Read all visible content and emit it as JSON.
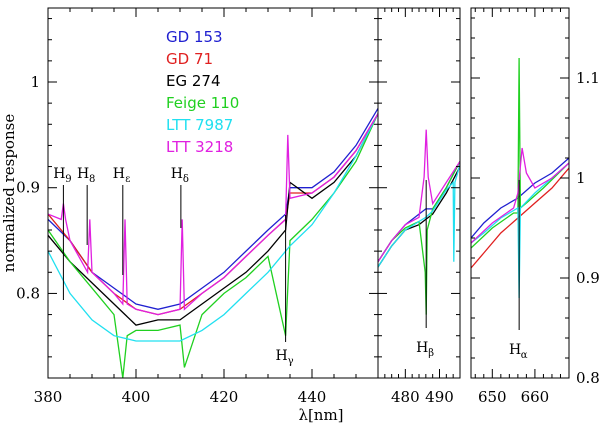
{
  "chart_data": {
    "type": "line",
    "ylabel": "normalized response",
    "xlabel": "λ[nm]",
    "left_axis": {
      "ylim": [
        0.72,
        1.07
      ],
      "ticks": [
        0.8,
        0.9,
        1
      ],
      "tick_labels": [
        "0.8",
        "0.9",
        "1"
      ]
    },
    "right_axis": {
      "ylim": [
        0.8,
        1.17
      ],
      "ticks": [
        0.8,
        0.9,
        1,
        1.1
      ],
      "tick_labels": [
        "0.8",
        "0.9",
        "1",
        "1.1"
      ]
    },
    "panels": [
      {
        "name": "blue",
        "xlim": [
          380,
          455
        ],
        "ticks": [
          380,
          400,
          420,
          440
        ],
        "tick_labels": [
          "380",
          "400",
          "420",
          "440"
        ],
        "axis": "left"
      },
      {
        "name": "hbeta",
        "xlim": [
          472,
          496
        ],
        "ticks": [
          480,
          490
        ],
        "tick_labels": [
          "480",
          "490"
        ],
        "axis": "left"
      },
      {
        "name": "halpha",
        "xlim": [
          645,
          668
        ],
        "ticks": [
          650,
          660
        ],
        "tick_labels": [
          "650",
          "660"
        ],
        "axis": "right"
      }
    ],
    "legend": [
      {
        "name": "GD 153",
        "color": "#2020d0"
      },
      {
        "name": "GD 71",
        "color": "#e02020"
      },
      {
        "name": "EG 274",
        "color": "#000000"
      },
      {
        "name": "Feige 110",
        "color": "#20d020"
      },
      {
        "name": "LTT 7987",
        "color": "#20e0f0"
      },
      {
        "name": "LTT 3218",
        "color": "#e020e0"
      }
    ],
    "annotations": [
      {
        "label": "H",
        "sub": "9",
        "panel": 0,
        "x": 383.5
      },
      {
        "label": "H",
        "sub": "8",
        "panel": 0,
        "x": 388.9
      },
      {
        "label": "H",
        "sub": "ε",
        "panel": 0,
        "x": 397.0
      },
      {
        "label": "H",
        "sub": "δ",
        "panel": 0,
        "x": 410.2
      },
      {
        "label": "H",
        "sub": "γ",
        "panel": 0,
        "x": 434.0
      },
      {
        "label": "H",
        "sub": "β",
        "panel": 1,
        "x": 486.1
      },
      {
        "label": "H",
        "sub": "α",
        "panel": 2,
        "x": 656.3
      }
    ],
    "series": [
      {
        "name": "GD 153",
        "color": "#2020d0",
        "panel": 0,
        "x": [
          380,
          385,
          390,
          395,
          400,
          405,
          410,
          415,
          420,
          425,
          430,
          434,
          435,
          440,
          445,
          450,
          455
        ],
        "y": [
          0.87,
          0.85,
          0.82,
          0.805,
          0.79,
          0.785,
          0.79,
          0.805,
          0.82,
          0.84,
          0.86,
          0.875,
          0.9,
          0.9,
          0.915,
          0.94,
          0.975
        ]
      },
      {
        "name": "GD 71",
        "color": "#e02020",
        "panel": 0,
        "x": [
          380,
          385,
          390,
          395,
          400,
          405,
          410,
          415,
          420,
          425,
          430,
          434,
          435,
          440,
          445,
          450,
          455
        ],
        "y": [
          0.875,
          0.85,
          0.82,
          0.8,
          0.785,
          0.78,
          0.785,
          0.8,
          0.815,
          0.835,
          0.855,
          0.87,
          0.895,
          0.895,
          0.91,
          0.935,
          0.97
        ]
      },
      {
        "name": "EG 274",
        "color": "#000000",
        "panel": 0,
        "x": [
          380,
          385,
          390,
          395,
          400,
          405,
          410,
          415,
          420,
          425,
          430,
          434,
          435,
          440,
          445,
          450,
          455
        ],
        "y": [
          0.855,
          0.83,
          0.81,
          0.79,
          0.77,
          0.775,
          0.775,
          0.79,
          0.805,
          0.82,
          0.84,
          0.86,
          0.905,
          0.89,
          0.905,
          0.93,
          0.97
        ]
      },
      {
        "name": "Feige 110",
        "color": "#20d020",
        "panel": 0,
        "x": [
          380,
          385,
          390,
          395,
          397,
          398,
          400,
          405,
          410,
          411,
          415,
          420,
          425,
          430,
          434,
          435,
          440,
          445,
          450,
          455
        ],
        "y": [
          0.86,
          0.83,
          0.805,
          0.78,
          0.72,
          0.76,
          0.765,
          0.765,
          0.77,
          0.73,
          0.78,
          0.8,
          0.815,
          0.835,
          0.76,
          0.85,
          0.87,
          0.895,
          0.925,
          0.97
        ]
      },
      {
        "name": "LTT 7987",
        "color": "#20e0f0",
        "panel": 0,
        "x": [
          380,
          385,
          390,
          395,
          400,
          405,
          410,
          415,
          420,
          425,
          430,
          435,
          440,
          445,
          450,
          455
        ],
        "y": [
          0.84,
          0.8,
          0.775,
          0.76,
          0.755,
          0.755,
          0.755,
          0.765,
          0.78,
          0.8,
          0.82,
          0.845,
          0.865,
          0.895,
          0.93,
          0.97
        ]
      },
      {
        "name": "LTT 3218",
        "color": "#e020e0",
        "panel": 0,
        "x": [
          380,
          383,
          383.5,
          384,
          385,
          389,
          389.5,
          390,
          395,
          397,
          397.5,
          398,
          400,
          405,
          410,
          410.5,
          411,
          415,
          420,
          425,
          430,
          434,
          434.5,
          435,
          440,
          445,
          450,
          455
        ],
        "y": [
          0.875,
          0.87,
          0.885,
          0.87,
          0.85,
          0.82,
          0.87,
          0.82,
          0.8,
          0.79,
          0.87,
          0.79,
          0.785,
          0.78,
          0.785,
          0.87,
          0.785,
          0.8,
          0.815,
          0.835,
          0.855,
          0.87,
          0.95,
          0.89,
          0.895,
          0.91,
          0.935,
          0.97
        ]
      },
      {
        "name": "GD 153",
        "color": "#2020d0",
        "panel": 1,
        "x": [
          472,
          476,
          480,
          484,
          486,
          488,
          492,
          496
        ],
        "y": [
          0.83,
          0.85,
          0.865,
          0.875,
          0.88,
          0.88,
          0.9,
          0.925
        ]
      },
      {
        "name": "EG 274",
        "color": "#000000",
        "panel": 1,
        "x": [
          472,
          476,
          480,
          484,
          486,
          488,
          492,
          496
        ],
        "y": [
          0.825,
          0.845,
          0.86,
          0.865,
          0.87,
          0.875,
          0.895,
          0.92
        ]
      },
      {
        "name": "Feige 110",
        "color": "#20d020",
        "panel": 1,
        "x": [
          472,
          476,
          480,
          484,
          485.8,
          486.1,
          486.4,
          488,
          492,
          496
        ],
        "y": [
          0.83,
          0.85,
          0.862,
          0.868,
          0.82,
          0.78,
          0.86,
          0.88,
          0.9,
          0.925
        ]
      },
      {
        "name": "LTT 7987",
        "color": "#20e0f0",
        "panel": 1,
        "x": [
          472,
          476,
          480,
          484,
          486,
          488,
          492,
          494,
          494.2,
          494.5,
          496
        ],
        "y": [
          0.825,
          0.845,
          0.86,
          0.868,
          0.872,
          0.878,
          0.898,
          0.905,
          0.83,
          0.905,
          0.922
        ]
      },
      {
        "name": "LTT 3218",
        "color": "#e020e0",
        "panel": 1,
        "x": [
          472,
          476,
          480,
          484,
          485.5,
          486.1,
          486.7,
          488,
          492,
          496
        ],
        "y": [
          0.83,
          0.85,
          0.865,
          0.872,
          0.91,
          0.955,
          0.91,
          0.885,
          0.905,
          0.925
        ]
      },
      {
        "name": "GD 153",
        "color": "#2020d0",
        "panel": 2,
        "x": [
          645,
          648,
          652,
          656,
          660,
          664,
          668
        ],
        "y": [
          0.94,
          0.955,
          0.97,
          0.98,
          0.995,
          1.005,
          1.02
        ]
      },
      {
        "name": "GD 71",
        "color": "#e02020",
        "panel": 2,
        "x": [
          645,
          648,
          652,
          656,
          660,
          664,
          668
        ],
        "y": [
          0.91,
          0.925,
          0.945,
          0.96,
          0.975,
          0.99,
          1.01
        ]
      },
      {
        "name": "Feige 110",
        "color": "#20d020",
        "panel": 2,
        "x": [
          645,
          650,
          655,
          656,
          656.3,
          656.6,
          658,
          662,
          668
        ],
        "y": [
          0.93,
          0.95,
          0.965,
          0.965,
          1.12,
          0.97,
          0.975,
          0.99,
          1.015
        ]
      },
      {
        "name": "LTT 7987",
        "color": "#20e0f0",
        "panel": 2,
        "x": [
          645,
          648,
          652,
          656,
          656.3,
          656.6,
          660,
          664,
          668
        ],
        "y": [
          0.935,
          0.945,
          0.96,
          0.97,
          0.88,
          0.97,
          0.985,
          1.0,
          1.015
        ]
      },
      {
        "name": "LTT 3218",
        "color": "#e020e0",
        "panel": 2,
        "x": [
          645,
          650,
          655,
          656,
          657,
          658,
          660,
          664,
          668
        ],
        "y": [
          0.935,
          0.955,
          0.97,
          0.985,
          1.03,
          1.005,
          0.99,
          1.0,
          1.015
        ]
      }
    ]
  }
}
